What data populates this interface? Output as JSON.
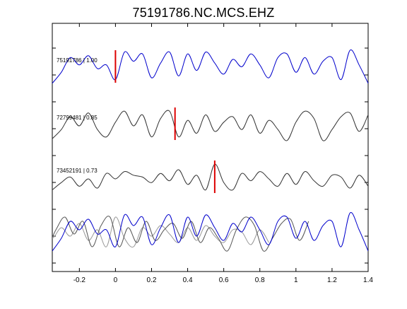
{
  "chart_data": {
    "type": "line",
    "title": "75191786.NC.MCS.EHZ",
    "xlabel": "",
    "ylabel": "",
    "xlim": [
      -0.35,
      1.4
    ],
    "xticks": [
      -0.2,
      0,
      0.2,
      0.4,
      0.6,
      0.8,
      1,
      1.2,
      1.4
    ],
    "xtick_labels": [
      "-0.2",
      "0",
      "0.2",
      "0.4",
      "0.6",
      "0.8",
      "1",
      "1.2",
      "1.4"
    ],
    "grid": false,
    "series": [
      {
        "name": "75191786 | 1.00",
        "color": "#0000cc",
        "pick_time": 0.0,
        "x": [
          -0.35,
          -0.3,
          -0.25,
          -0.2,
          -0.15,
          -0.1,
          -0.05,
          0.0,
          0.05,
          0.1,
          0.15,
          0.2,
          0.25,
          0.3,
          0.35,
          0.4,
          0.45,
          0.5,
          0.55,
          0.6,
          0.65,
          0.7,
          0.75,
          0.8,
          0.85,
          0.9,
          0.95,
          1.0,
          1.05,
          1.1,
          1.15,
          1.2,
          1.25,
          1.3,
          1.35,
          1.4
        ],
        "y": [
          -0.8,
          -0.2,
          0.6,
          0.2,
          0.7,
          0.0,
          0.2,
          -0.6,
          0.9,
          0.4,
          0.8,
          -0.5,
          0.3,
          0.9,
          -0.4,
          0.8,
          -0.1,
          0.9,
          0.3,
          -0.3,
          0.5,
          0.1,
          0.8,
          0.2,
          -0.5,
          0.6,
          0.8,
          -0.2,
          0.6,
          -0.3,
          0.4,
          0.6,
          -0.6,
          1.0,
          0.2,
          -0.8
        ]
      },
      {
        "name": "72799481 | 0.85",
        "color": "#333333",
        "pick_time": 0.33,
        "x": [
          -0.35,
          -0.3,
          -0.25,
          -0.2,
          -0.15,
          -0.1,
          -0.05,
          0.0,
          0.05,
          0.1,
          0.15,
          0.2,
          0.25,
          0.3,
          0.35,
          0.4,
          0.45,
          0.5,
          0.55,
          0.6,
          0.65,
          0.7,
          0.75,
          0.8,
          0.85,
          0.9,
          0.95,
          1.0,
          1.05,
          1.1,
          1.15,
          1.2,
          1.25,
          1.3,
          1.35,
          1.4
        ],
        "y": [
          -0.7,
          -0.2,
          0.5,
          0.0,
          0.7,
          -0.2,
          -0.6,
          0.2,
          0.8,
          0.0,
          0.6,
          -0.6,
          0.4,
          0.8,
          -0.6,
          0.3,
          -0.4,
          0.6,
          -0.3,
          0.2,
          0.5,
          -0.2,
          0.6,
          -0.4,
          0.3,
          -0.2,
          -0.8,
          0.2,
          0.8,
          0.4,
          -0.8,
          -0.2,
          0.5,
          0.7,
          -0.3,
          0.6
        ]
      },
      {
        "name": "73452191 | 0.73",
        "color": "#333333",
        "pick_time": 0.55,
        "x": [
          -0.35,
          -0.3,
          -0.25,
          -0.2,
          -0.15,
          -0.1,
          -0.05,
          0.0,
          0.05,
          0.1,
          0.15,
          0.2,
          0.25,
          0.3,
          0.35,
          0.4,
          0.45,
          0.5,
          0.55,
          0.6,
          0.65,
          0.7,
          0.75,
          0.8,
          0.85,
          0.9,
          0.95,
          1.0,
          1.05,
          1.1,
          1.15,
          1.2,
          1.25,
          1.3,
          1.35,
          1.4
        ],
        "y": [
          -0.6,
          -0.2,
          0.1,
          -0.4,
          0.0,
          -0.5,
          0.3,
          0.0,
          0.4,
          0.2,
          0.1,
          -0.2,
          0.3,
          -0.1,
          0.5,
          -0.3,
          0.2,
          -0.6,
          0.8,
          -0.2,
          -0.6,
          0.3,
          -0.1,
          0.4,
          0.0,
          -0.4,
          0.3,
          -0.3,
          0.4,
          -0.1,
          -0.4,
          0.2,
          0.1,
          -0.5,
          0.2,
          -0.4
        ]
      }
    ]
  },
  "trace_labels": [
    "75191786 | 1.00",
    "72799481 | 0.85",
    "73452191 | 0.73"
  ]
}
